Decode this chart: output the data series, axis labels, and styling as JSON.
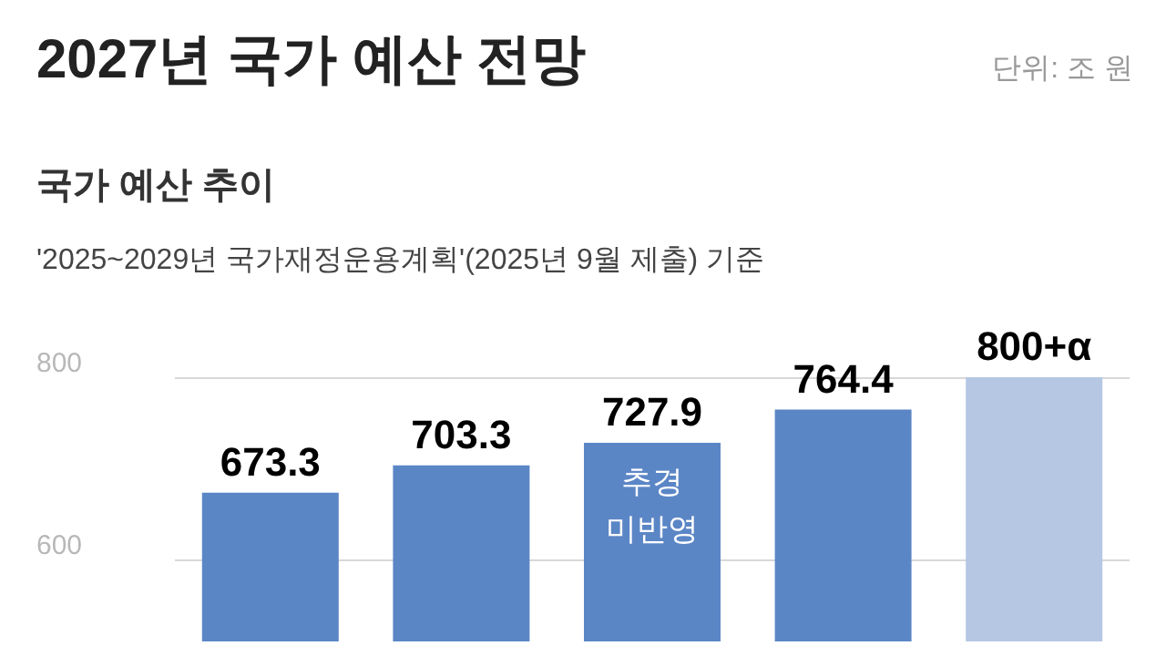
{
  "chart_data": {
    "type": "bar",
    "title": "2027년 국가 예산 전망",
    "subtitle": "국가 예산 추이",
    "annotations": [
      "단위: 조 원",
      "'2025~2029년 국가재정운용계획'(2025년 9월 제출) 기준",
      "추경\n미반영"
    ],
    "categories": [
      null,
      null,
      null,
      null,
      null
    ],
    "values": [
      673.3,
      703.3,
      727.9,
      764.4,
      800
    ],
    "colors": [
      "#5b86c6",
      "#5b86c6",
      "#5b86c6",
      "#5b86c6",
      "#b5c7e3"
    ],
    "value_labels": [
      "673.3",
      "703.3",
      "727.9",
      "764.4",
      "800+α"
    ],
    "ylim": [
      510,
      800
    ],
    "yticks": [
      600,
      800
    ],
    "grid": "y"
  }
}
